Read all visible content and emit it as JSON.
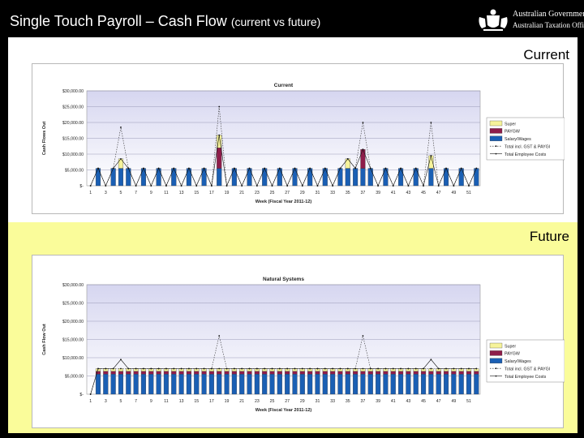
{
  "slide": {
    "title_main": "Single Touch Payroll – Cash Flow",
    "title_sub": "(current vs future)",
    "section_current": "Current",
    "section_future": "Future"
  },
  "logo": {
    "line1": "Australian Government",
    "line2": "Australian Taxation Office",
    "icon": "coat-of-arms-icon"
  },
  "colors": {
    "super": "#f6f39a",
    "paygw": "#8e1d4a",
    "salary": "#1a5fb4",
    "plot_top": "#d6d6f0",
    "plot_bottom": "#ffffff",
    "future_bg": "#fafc9a"
  },
  "chart_data": [
    {
      "type": "bar",
      "title": "Current",
      "xlabel": "Week (Fiscal Year 2011-12)",
      "ylabel": "Cash Flows Out",
      "ylim": [
        0,
        30000
      ],
      "yticks": [
        "$-",
        "$5,000.00",
        "$10,000.00",
        "$15,000.00",
        "$20,000.00",
        "$25,000.00",
        "$30,000.00"
      ],
      "xticks": [
        "1",
        "3",
        "5",
        "7",
        "9",
        "11",
        "13",
        "15",
        "17",
        "19",
        "21",
        "23",
        "25",
        "27",
        "29",
        "31",
        "33",
        "35",
        "37",
        "39",
        "41",
        "43",
        "45",
        "47",
        "49",
        "51"
      ],
      "x": [
        1,
        2,
        3,
        4,
        5,
        6,
        7,
        8,
        9,
        10,
        11,
        12,
        13,
        14,
        15,
        16,
        17,
        18,
        19,
        20,
        21,
        22,
        23,
        24,
        25,
        26,
        27,
        28,
        29,
        30,
        31,
        32,
        33,
        34,
        35,
        36,
        37,
        38,
        39,
        40,
        41,
        42,
        43,
        44,
        45,
        46,
        47,
        48,
        49,
        50,
        51,
        52
      ],
      "grid": true,
      "legend_position": "right",
      "series": [
        {
          "name": "Super",
          "kind": "bar",
          "values": [
            0,
            0,
            0,
            0,
            3000,
            0,
            0,
            0,
            0,
            0,
            0,
            0,
            0,
            0,
            0,
            0,
            0,
            4000,
            0,
            0,
            0,
            0,
            0,
            0,
            0,
            0,
            0,
            0,
            0,
            0,
            0,
            0,
            0,
            0,
            3000,
            0,
            0,
            0,
            0,
            0,
            0,
            0,
            0,
            0,
            0,
            4000,
            0,
            0,
            0,
            0,
            0,
            0
          ]
        },
        {
          "name": "PAYGW",
          "kind": "bar",
          "values": [
            0,
            0,
            0,
            0,
            0,
            0,
            0,
            0,
            0,
            0,
            0,
            0,
            0,
            0,
            0,
            0,
            0,
            6500,
            0,
            0,
            0,
            0,
            0,
            0,
            0,
            0,
            0,
            0,
            0,
            0,
            0,
            0,
            0,
            0,
            0,
            0,
            6000,
            0,
            0,
            0,
            0,
            0,
            0,
            0,
            0,
            0,
            0,
            0,
            0,
            0,
            0,
            0
          ]
        },
        {
          "name": "Salary/Wages",
          "kind": "bar",
          "values": [
            0,
            5500,
            0,
            5500,
            5500,
            5500,
            0,
            5500,
            0,
            5500,
            0,
            5500,
            0,
            5500,
            0,
            5500,
            0,
            5500,
            0,
            5500,
            0,
            5500,
            0,
            5500,
            0,
            5500,
            0,
            5500,
            0,
            5500,
            0,
            5500,
            0,
            5500,
            5500,
            5500,
            5500,
            5500,
            0,
            5500,
            0,
            5500,
            0,
            5500,
            0,
            5500,
            0,
            5500,
            0,
            5500,
            0,
            5500
          ]
        },
        {
          "name": "Total incl. GST & PAYGI",
          "kind": "line",
          "values": [
            0,
            5500,
            0,
            5500,
            18500,
            5500,
            0,
            5500,
            0,
            5500,
            0,
            5500,
            0,
            5500,
            0,
            5500,
            0,
            25000,
            0,
            5500,
            0,
            5500,
            0,
            5500,
            0,
            5500,
            0,
            5500,
            0,
            5500,
            0,
            5500,
            0,
            5500,
            8500,
            5500,
            20000,
            5500,
            0,
            5500,
            0,
            5500,
            0,
            5500,
            0,
            20000,
            0,
            5500,
            0,
            5500,
            0,
            5500
          ]
        },
        {
          "name": "Total Employee Costs",
          "kind": "line",
          "values": [
            0,
            5500,
            0,
            5500,
            8500,
            5500,
            0,
            5500,
            0,
            5500,
            0,
            5500,
            0,
            5500,
            0,
            5500,
            0,
            16000,
            0,
            5500,
            0,
            5500,
            0,
            5500,
            0,
            5500,
            0,
            5500,
            0,
            5500,
            0,
            5500,
            0,
            5500,
            8500,
            5500,
            11500,
            5500,
            0,
            5500,
            0,
            5500,
            0,
            5500,
            0,
            9500,
            0,
            5500,
            0,
            5500,
            0,
            5500
          ]
        }
      ]
    },
    {
      "type": "bar",
      "title": "Natural Systems",
      "xlabel": "Week (Fiscal Year 2011-12)",
      "ylabel": "Cash Flow Out",
      "ylim": [
        0,
        30000
      ],
      "yticks": [
        "$-",
        "$5,000.00",
        "$10,000.00",
        "$15,000.00",
        "$20,000.00",
        "$25,000.00",
        "$30,000.00"
      ],
      "xticks": [
        "1",
        "3",
        "5",
        "7",
        "9",
        "11",
        "13",
        "15",
        "17",
        "19",
        "21",
        "23",
        "25",
        "27",
        "29",
        "31",
        "33",
        "35",
        "37",
        "39",
        "41",
        "43",
        "45",
        "47",
        "49",
        "51"
      ],
      "x": [
        1,
        2,
        3,
        4,
        5,
        6,
        7,
        8,
        9,
        10,
        11,
        12,
        13,
        14,
        15,
        16,
        17,
        18,
        19,
        20,
        21,
        22,
        23,
        24,
        25,
        26,
        27,
        28,
        29,
        30,
        31,
        32,
        33,
        34,
        35,
        36,
        37,
        38,
        39,
        40,
        41,
        42,
        43,
        44,
        45,
        46,
        47,
        48,
        49,
        50,
        51,
        52
      ],
      "grid": true,
      "legend_position": "right",
      "series": [
        {
          "name": "Super",
          "kind": "bar",
          "values": [
            0,
            700,
            700,
            700,
            700,
            700,
            700,
            700,
            700,
            700,
            700,
            700,
            700,
            700,
            700,
            700,
            700,
            700,
            700,
            700,
            700,
            700,
            700,
            700,
            700,
            700,
            700,
            700,
            700,
            700,
            700,
            700,
            700,
            700,
            700,
            700,
            700,
            700,
            700,
            700,
            700,
            700,
            700,
            700,
            700,
            700,
            700,
            700,
            700,
            700,
            700,
            700
          ]
        },
        {
          "name": "PAYGW",
          "kind": "bar",
          "values": [
            0,
            800,
            800,
            800,
            800,
            800,
            800,
            800,
            800,
            800,
            800,
            800,
            800,
            800,
            800,
            800,
            800,
            800,
            800,
            800,
            800,
            800,
            800,
            800,
            800,
            800,
            800,
            800,
            800,
            800,
            800,
            800,
            800,
            800,
            800,
            800,
            800,
            800,
            800,
            800,
            800,
            800,
            800,
            800,
            800,
            800,
            800,
            800,
            800,
            800,
            800,
            800
          ]
        },
        {
          "name": "Salary/Wages",
          "kind": "bar",
          "values": [
            0,
            5500,
            5500,
            5500,
            5500,
            5500,
            5500,
            5500,
            5500,
            5500,
            5500,
            5500,
            5500,
            5500,
            5500,
            5500,
            5500,
            5500,
            5500,
            5500,
            5500,
            5500,
            5500,
            5500,
            5500,
            5500,
            5500,
            5500,
            5500,
            5500,
            5500,
            5500,
            5500,
            5500,
            5500,
            5500,
            5500,
            5500,
            5500,
            5500,
            5500,
            5500,
            5500,
            5500,
            5500,
            5500,
            5500,
            5500,
            5500,
            5500,
            5500,
            5500
          ]
        },
        {
          "name": "Total incl. GST & PAYGI",
          "kind": "line",
          "values": [
            0,
            7000,
            7000,
            7000,
            7000,
            7000,
            7000,
            7000,
            7000,
            7000,
            7000,
            7000,
            7000,
            7000,
            7000,
            7000,
            7000,
            16000,
            7000,
            7000,
            7000,
            7000,
            7000,
            7000,
            7000,
            7000,
            7000,
            7000,
            7000,
            7000,
            7000,
            7000,
            7000,
            7000,
            7000,
            7000,
            16000,
            7000,
            7000,
            7000,
            7000,
            7000,
            7000,
            7000,
            7000,
            7000,
            7000,
            7000,
            7000,
            7000,
            7000,
            7000
          ]
        },
        {
          "name": "Total Employee Costs",
          "kind": "line",
          "values": [
            0,
            7000,
            7000,
            7000,
            9500,
            7000,
            7000,
            7000,
            7000,
            7000,
            7000,
            7000,
            7000,
            7000,
            7000,
            7000,
            7000,
            7000,
            7000,
            7000,
            7000,
            7000,
            7000,
            7000,
            7000,
            7000,
            7000,
            7000,
            7000,
            7000,
            7000,
            7000,
            7000,
            7000,
            7000,
            7000,
            7000,
            7000,
            7000,
            7000,
            7000,
            7000,
            7000,
            7000,
            7000,
            9500,
            7000,
            7000,
            7000,
            7000,
            7000,
            7000
          ]
        }
      ]
    }
  ]
}
